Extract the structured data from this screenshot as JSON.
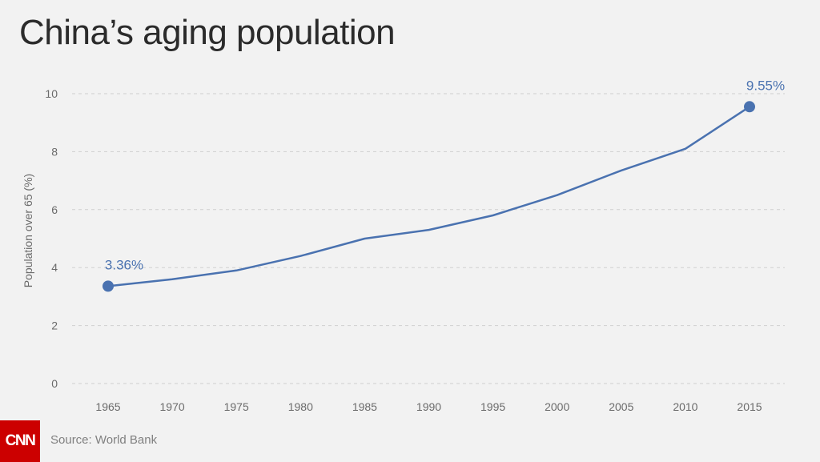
{
  "header": {
    "title": "China’s aging population"
  },
  "footer": {
    "logo_text": "CNN",
    "source": "Source: World Bank"
  },
  "colors": {
    "line": "#4a72b0",
    "grid": "#cfcfcf",
    "tick_text": "#6b6b6b",
    "label_text": "#4a72b0"
  },
  "chart_data": {
    "type": "line",
    "title": "China’s aging population",
    "xlabel": "",
    "ylabel": "Population over 65 (%)",
    "ylim": [
      0,
      10
    ],
    "yticks": [
      0,
      2,
      4,
      6,
      8,
      10
    ],
    "xticks": [
      "1965",
      "1970",
      "1975",
      "1980",
      "1985",
      "1990",
      "1995",
      "2000",
      "2005",
      "2010",
      "2015"
    ],
    "grid": "horizontal-dashed",
    "series": [
      {
        "x": [
          1965,
          1970,
          1975,
          1980,
          1985,
          1990,
          1995,
          2000,
          2005,
          2010,
          2015
        ],
        "values": [
          3.36,
          3.6,
          3.9,
          4.4,
          5.0,
          5.3,
          5.8,
          6.5,
          7.35,
          8.1,
          9.55
        ]
      }
    ],
    "annotations": [
      {
        "x": 1965,
        "label": "3.36%"
      },
      {
        "x": 2015,
        "label": "9.55%"
      }
    ]
  }
}
